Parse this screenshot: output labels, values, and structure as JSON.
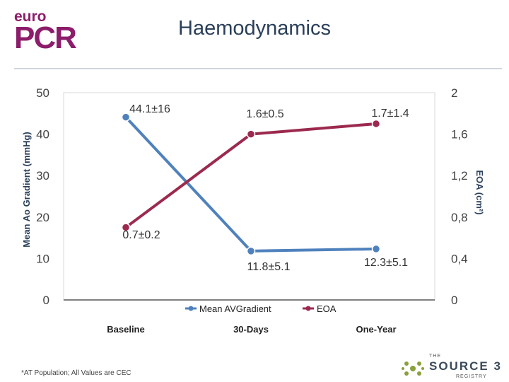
{
  "logo": {
    "line1": "euro",
    "line2": "PCR"
  },
  "title": "Haemodynamics",
  "footnote": "*AT Population; All Values are CEC",
  "registry": {
    "the": "THE",
    "word": "SOURCE 3",
    "sub": "REGISTRY"
  },
  "colors": {
    "gradient": "#4f81bd",
    "eoa": "#9c2a4e",
    "logo": "#8c1d6b",
    "title": "#2a3f5a"
  },
  "chart_data": {
    "type": "line",
    "categories": [
      "Baseline",
      "30-Days",
      "One-Year"
    ],
    "ylabel": "Mean Ao Gradient (mmHg)",
    "y2label": "EOA (cm²)",
    "ylim": [
      0,
      50
    ],
    "y2lim": [
      0,
      2
    ],
    "yticks": [
      "0",
      "10",
      "20",
      "30",
      "40",
      "50"
    ],
    "y2ticks": [
      "0",
      "0,4",
      "0,8",
      "1,2",
      "1,6",
      "2"
    ],
    "grid": false,
    "legend_position": "bottom",
    "series": [
      {
        "name": "Mean AVGradient",
        "axis": "left",
        "values": [
          44.1,
          11.8,
          12.3
        ],
        "labels": [
          "44.1±16",
          "11.8±5.1",
          "12.3±5.1"
        ]
      },
      {
        "name": "EOA",
        "axis": "right",
        "values": [
          0.7,
          1.6,
          1.7
        ],
        "labels": [
          "0.7±0.2",
          "1.6±0.5",
          "1.7±1.4"
        ]
      }
    ]
  }
}
